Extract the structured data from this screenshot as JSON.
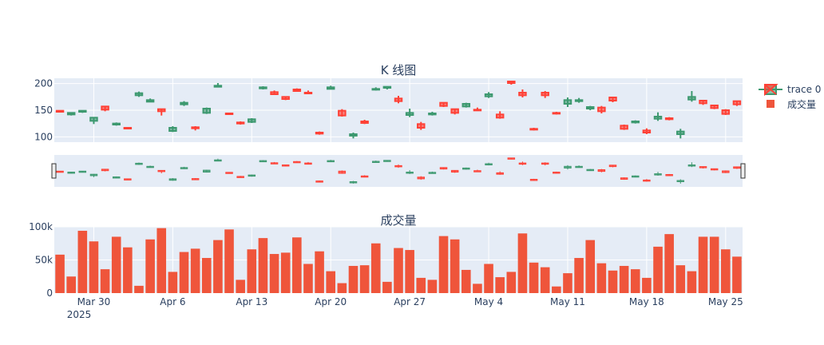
{
  "chart_data": [
    {
      "type": "candlestick",
      "title": "K 线图",
      "ylim": [
        90,
        210
      ],
      "y_ticks": [
        100,
        150,
        200
      ],
      "y_tick_labels": [
        "100",
        "150",
        "200"
      ],
      "increasing_color": "#3d9970",
      "decreasing_color": "#ff4136",
      "x": [
        "2025-03-27",
        "2025-03-28",
        "2025-03-29",
        "2025-03-30",
        "2025-03-31",
        "2025-04-01",
        "2025-04-02",
        "2025-04-03",
        "2025-04-04",
        "2025-04-05",
        "2025-04-06",
        "2025-04-07",
        "2025-04-08",
        "2025-04-09",
        "2025-04-10",
        "2025-04-11",
        "2025-04-12",
        "2025-04-13",
        "2025-04-14",
        "2025-04-15",
        "2025-04-16",
        "2025-04-17",
        "2025-04-18",
        "2025-04-19",
        "2025-04-20",
        "2025-04-21",
        "2025-04-22",
        "2025-04-23",
        "2025-04-24",
        "2025-04-25",
        "2025-04-26",
        "2025-04-27",
        "2025-04-28",
        "2025-04-29",
        "2025-04-30",
        "2025-05-01",
        "2025-05-02",
        "2025-05-03",
        "2025-05-04",
        "2025-05-05",
        "2025-05-06",
        "2025-05-07",
        "2025-05-08",
        "2025-05-09",
        "2025-05-10",
        "2025-05-11",
        "2025-05-12",
        "2025-05-13",
        "2025-05-14",
        "2025-05-15",
        "2025-05-16",
        "2025-05-17",
        "2025-05-18",
        "2025-05-19",
        "2025-05-20",
        "2025-05-21",
        "2025-05-22",
        "2025-05-23",
        "2025-05-24",
        "2025-05-25",
        "2025-05-26"
      ],
      "open": [
        149,
        142,
        147,
        130,
        157,
        123,
        117,
        178,
        166,
        152,
        111,
        161,
        118,
        145,
        194,
        144,
        127,
        128,
        191,
        184,
        175,
        189,
        183,
        108,
        190,
        149,
        102,
        129,
        189,
        192,
        172,
        141,
        124,
        142,
        164,
        152,
        157,
        151,
        176,
        142,
        204,
        183,
        115,
        183,
        145,
        162,
        167,
        153,
        155,
        174,
        121,
        127,
        112,
        134,
        135,
        105,
        170,
        168,
        159,
        150,
        167
      ],
      "close": [
        147,
        145,
        149,
        136,
        151,
        125,
        116,
        182,
        169,
        148,
        117,
        164,
        116,
        153,
        196,
        143,
        125,
        133,
        193,
        180,
        171,
        186,
        182,
        106,
        193,
        140,
        105,
        126,
        190,
        194,
        167,
        145,
        117,
        144,
        158,
        145,
        162,
        150,
        180,
        136,
        201,
        178,
        114,
        178,
        144,
        169,
        169,
        156,
        148,
        168,
        115,
        129,
        108,
        138,
        133,
        110,
        175,
        163,
        154,
        143,
        161
      ],
      "high": [
        150,
        146,
        150,
        137,
        158,
        127,
        118,
        185,
        172,
        153,
        120,
        167,
        120,
        155,
        201,
        145,
        129,
        135,
        195,
        187,
        176,
        191,
        187,
        110,
        196,
        152,
        108,
        132,
        193,
        195,
        177,
        153,
        128,
        147,
        165,
        153,
        164,
        155,
        184,
        148,
        205,
        189,
        117,
        186,
        147,
        174,
        173,
        158,
        158,
        175,
        123,
        131,
        116,
        146,
        137,
        115,
        186,
        169,
        160,
        152,
        168
      ],
      "low": [
        146,
        140,
        145,
        124,
        148,
        121,
        114,
        175,
        165,
        140,
        109,
        158,
        112,
        143,
        193,
        141,
        123,
        126,
        189,
        179,
        169,
        185,
        180,
        104,
        189,
        138,
        97,
        124,
        187,
        189,
        163,
        137,
        113,
        140,
        156,
        142,
        155,
        149,
        173,
        134,
        198,
        174,
        112,
        173,
        142,
        156,
        164,
        150,
        144,
        165,
        113,
        125,
        105,
        130,
        131,
        97,
        166,
        160,
        152,
        141,
        158
      ]
    },
    {
      "type": "bar",
      "title": "成交量",
      "ylim": [
        0,
        100000
      ],
      "y_ticks": [
        0,
        50000,
        100000
      ],
      "y_tick_labels": [
        "0",
        "50k",
        "100k"
      ],
      "color": "#ef553b",
      "values": [
        58000,
        25000,
        94000,
        78000,
        36000,
        85000,
        69000,
        11000,
        81000,
        98000,
        32000,
        62000,
        67000,
        53000,
        80000,
        96000,
        20000,
        66000,
        83000,
        59000,
        61000,
        84000,
        44000,
        63000,
        33000,
        15000,
        41000,
        42000,
        75000,
        17000,
        68000,
        65000,
        23000,
        20000,
        86000,
        81000,
        35000,
        14000,
        44000,
        24000,
        32000,
        90000,
        46000,
        39000,
        10000,
        30000,
        53000,
        80000,
        45000,
        34000,
        41000,
        36000,
        23000,
        70000,
        89000,
        42000,
        33000,
        85000,
        85000,
        66000,
        55000
      ]
    }
  ],
  "x_axis": {
    "tick_labels": [
      "Mar 30",
      "Apr 6",
      "Apr 13",
      "Apr 20",
      "Apr 27",
      "May 4",
      "May 11",
      "May 18",
      "May 25"
    ],
    "tick_dates": [
      "2025-03-30",
      "2025-04-06",
      "2025-04-13",
      "2025-04-20",
      "2025-04-27",
      "2025-05-04",
      "2025-05-11",
      "2025-05-18",
      "2025-05-25"
    ],
    "year_label": "2025"
  },
  "legend": {
    "placement": "top-right",
    "items": [
      {
        "label": "trace 0",
        "icon": "candlestick-icon"
      },
      {
        "label": "成交量",
        "icon": "bar-swatch-icon"
      }
    ]
  },
  "rangeslider": true
}
